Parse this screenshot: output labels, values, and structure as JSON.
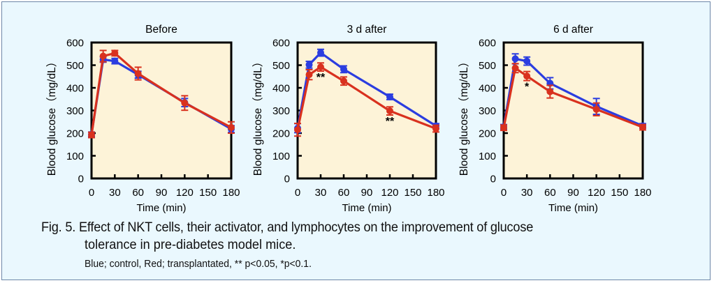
{
  "caption": {
    "line1": "Fig. 5. Effect of NKT cells, their activator, and lymphocytes on the improvement of glucose",
    "line2": "tolerance in pre-diabetes model mice.",
    "line3": "Blue; control, Red; transplantated,  ** p<0.05, *p<0.1."
  },
  "colors": {
    "control": "#2b3de0",
    "transplanted": "#d9311e",
    "plot_background": "#fdf3d8",
    "page_background": "#eaf8fe"
  },
  "chart_data": [
    {
      "type": "line",
      "title": "Before",
      "xlabel": "Time (min)",
      "ylabel": "Blood glucose（mg/dL）",
      "x": [
        0,
        15,
        30,
        60,
        120,
        180
      ],
      "xticks": [
        0,
        30,
        60,
        90,
        120,
        150,
        180
      ],
      "xlim": [
        0,
        180
      ],
      "yticks": [
        0,
        100,
        200,
        300,
        400,
        500,
        600
      ],
      "ylim": [
        0,
        600
      ],
      "grid": false,
      "series": [
        {
          "name": "control",
          "color": "blue",
          "values": [
            195,
            525,
            518,
            458,
            335,
            218
          ],
          "errors": [
            10,
            12,
            12,
            15,
            18,
            15
          ]
        },
        {
          "name": "transplanted",
          "color": "red",
          "values": [
            192,
            540,
            553,
            463,
            333,
            225
          ],
          "errors": [
            12,
            25,
            12,
            28,
            32,
            25
          ]
        }
      ],
      "annotations": []
    },
    {
      "type": "line",
      "title": "3 d after",
      "xlabel": "Time (min)",
      "ylabel": "Blood glucose（mg/dL）",
      "x": [
        0,
        15,
        30,
        60,
        120,
        180
      ],
      "xticks": [
        0,
        30,
        60,
        90,
        120,
        150,
        180
      ],
      "xlim": [
        0,
        180
      ],
      "yticks": [
        0,
        100,
        200,
        300,
        400,
        500,
        600
      ],
      "ylim": [
        0,
        600
      ],
      "grid": false,
      "series": [
        {
          "name": "control",
          "color": "blue",
          "values": [
            222,
            502,
            555,
            482,
            360,
            232
          ],
          "errors": [
            20,
            15,
            15,
            15,
            12,
            10
          ]
        },
        {
          "name": "transplanted",
          "color": "red",
          "values": [
            215,
            458,
            492,
            430,
            298,
            220
          ],
          "errors": [
            28,
            22,
            18,
            18,
            18,
            15
          ]
        }
      ],
      "annotations": [
        {
          "x": 30,
          "text": "**"
        },
        {
          "x": 120,
          "text": "**"
        }
      ]
    },
    {
      "type": "line",
      "title": "6 d after",
      "xlabel": "Time (min)",
      "ylabel": "Blood glucose（mg/dL）",
      "x": [
        0,
        15,
        30,
        60,
        120,
        180
      ],
      "xticks": [
        0,
        30,
        60,
        90,
        120,
        150,
        180
      ],
      "xlim": [
        0,
        180
      ],
      "yticks": [
        0,
        100,
        200,
        300,
        400,
        500,
        600
      ],
      "ylim": [
        0,
        600
      ],
      "grid": false,
      "series": [
        {
          "name": "control",
          "color": "blue",
          "values": [
            228,
            528,
            518,
            420,
            318,
            232
          ],
          "errors": [
            10,
            22,
            18,
            25,
            35,
            10
          ]
        },
        {
          "name": "transplanted",
          "color": "red",
          "values": [
            224,
            487,
            452,
            383,
            305,
            226
          ],
          "errors": [
            12,
            20,
            20,
            28,
            28,
            12
          ]
        }
      ],
      "annotations": [
        {
          "x": 30,
          "text": "*"
        }
      ]
    }
  ]
}
